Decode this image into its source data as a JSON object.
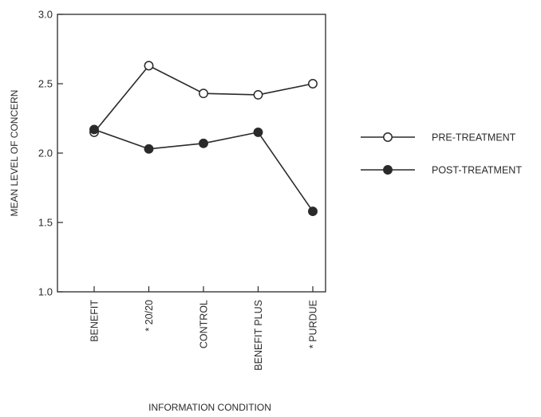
{
  "chart_data": {
    "type": "line",
    "title": "",
    "xlabel": "INFORMATION CONDITION",
    "ylabel": "MEAN LEVEL OF CONCERN",
    "categories": [
      "BENEFIT",
      "* 20/20",
      "CONTROL",
      "BENEFIT PLUS",
      "* PURDUE"
    ],
    "ylim": [
      1.0,
      3.0
    ],
    "yticks": [
      "1.0",
      "1.5",
      "2.0",
      "2.5",
      "3.0"
    ],
    "grid": false,
    "legend_position": "right",
    "series": [
      {
        "name": "PRE-TREATMENT",
        "marker": "open-circle",
        "values": [
          2.15,
          2.63,
          2.43,
          2.42,
          2.5
        ]
      },
      {
        "name": "POST-TREATMENT",
        "marker": "filled-circle",
        "values": [
          2.17,
          2.03,
          2.07,
          2.15,
          1.58
        ]
      }
    ],
    "colors": {
      "line": "#2a2a2a",
      "filled_marker": "#2a2a2a",
      "open_marker_fill": "#ffffff"
    }
  }
}
